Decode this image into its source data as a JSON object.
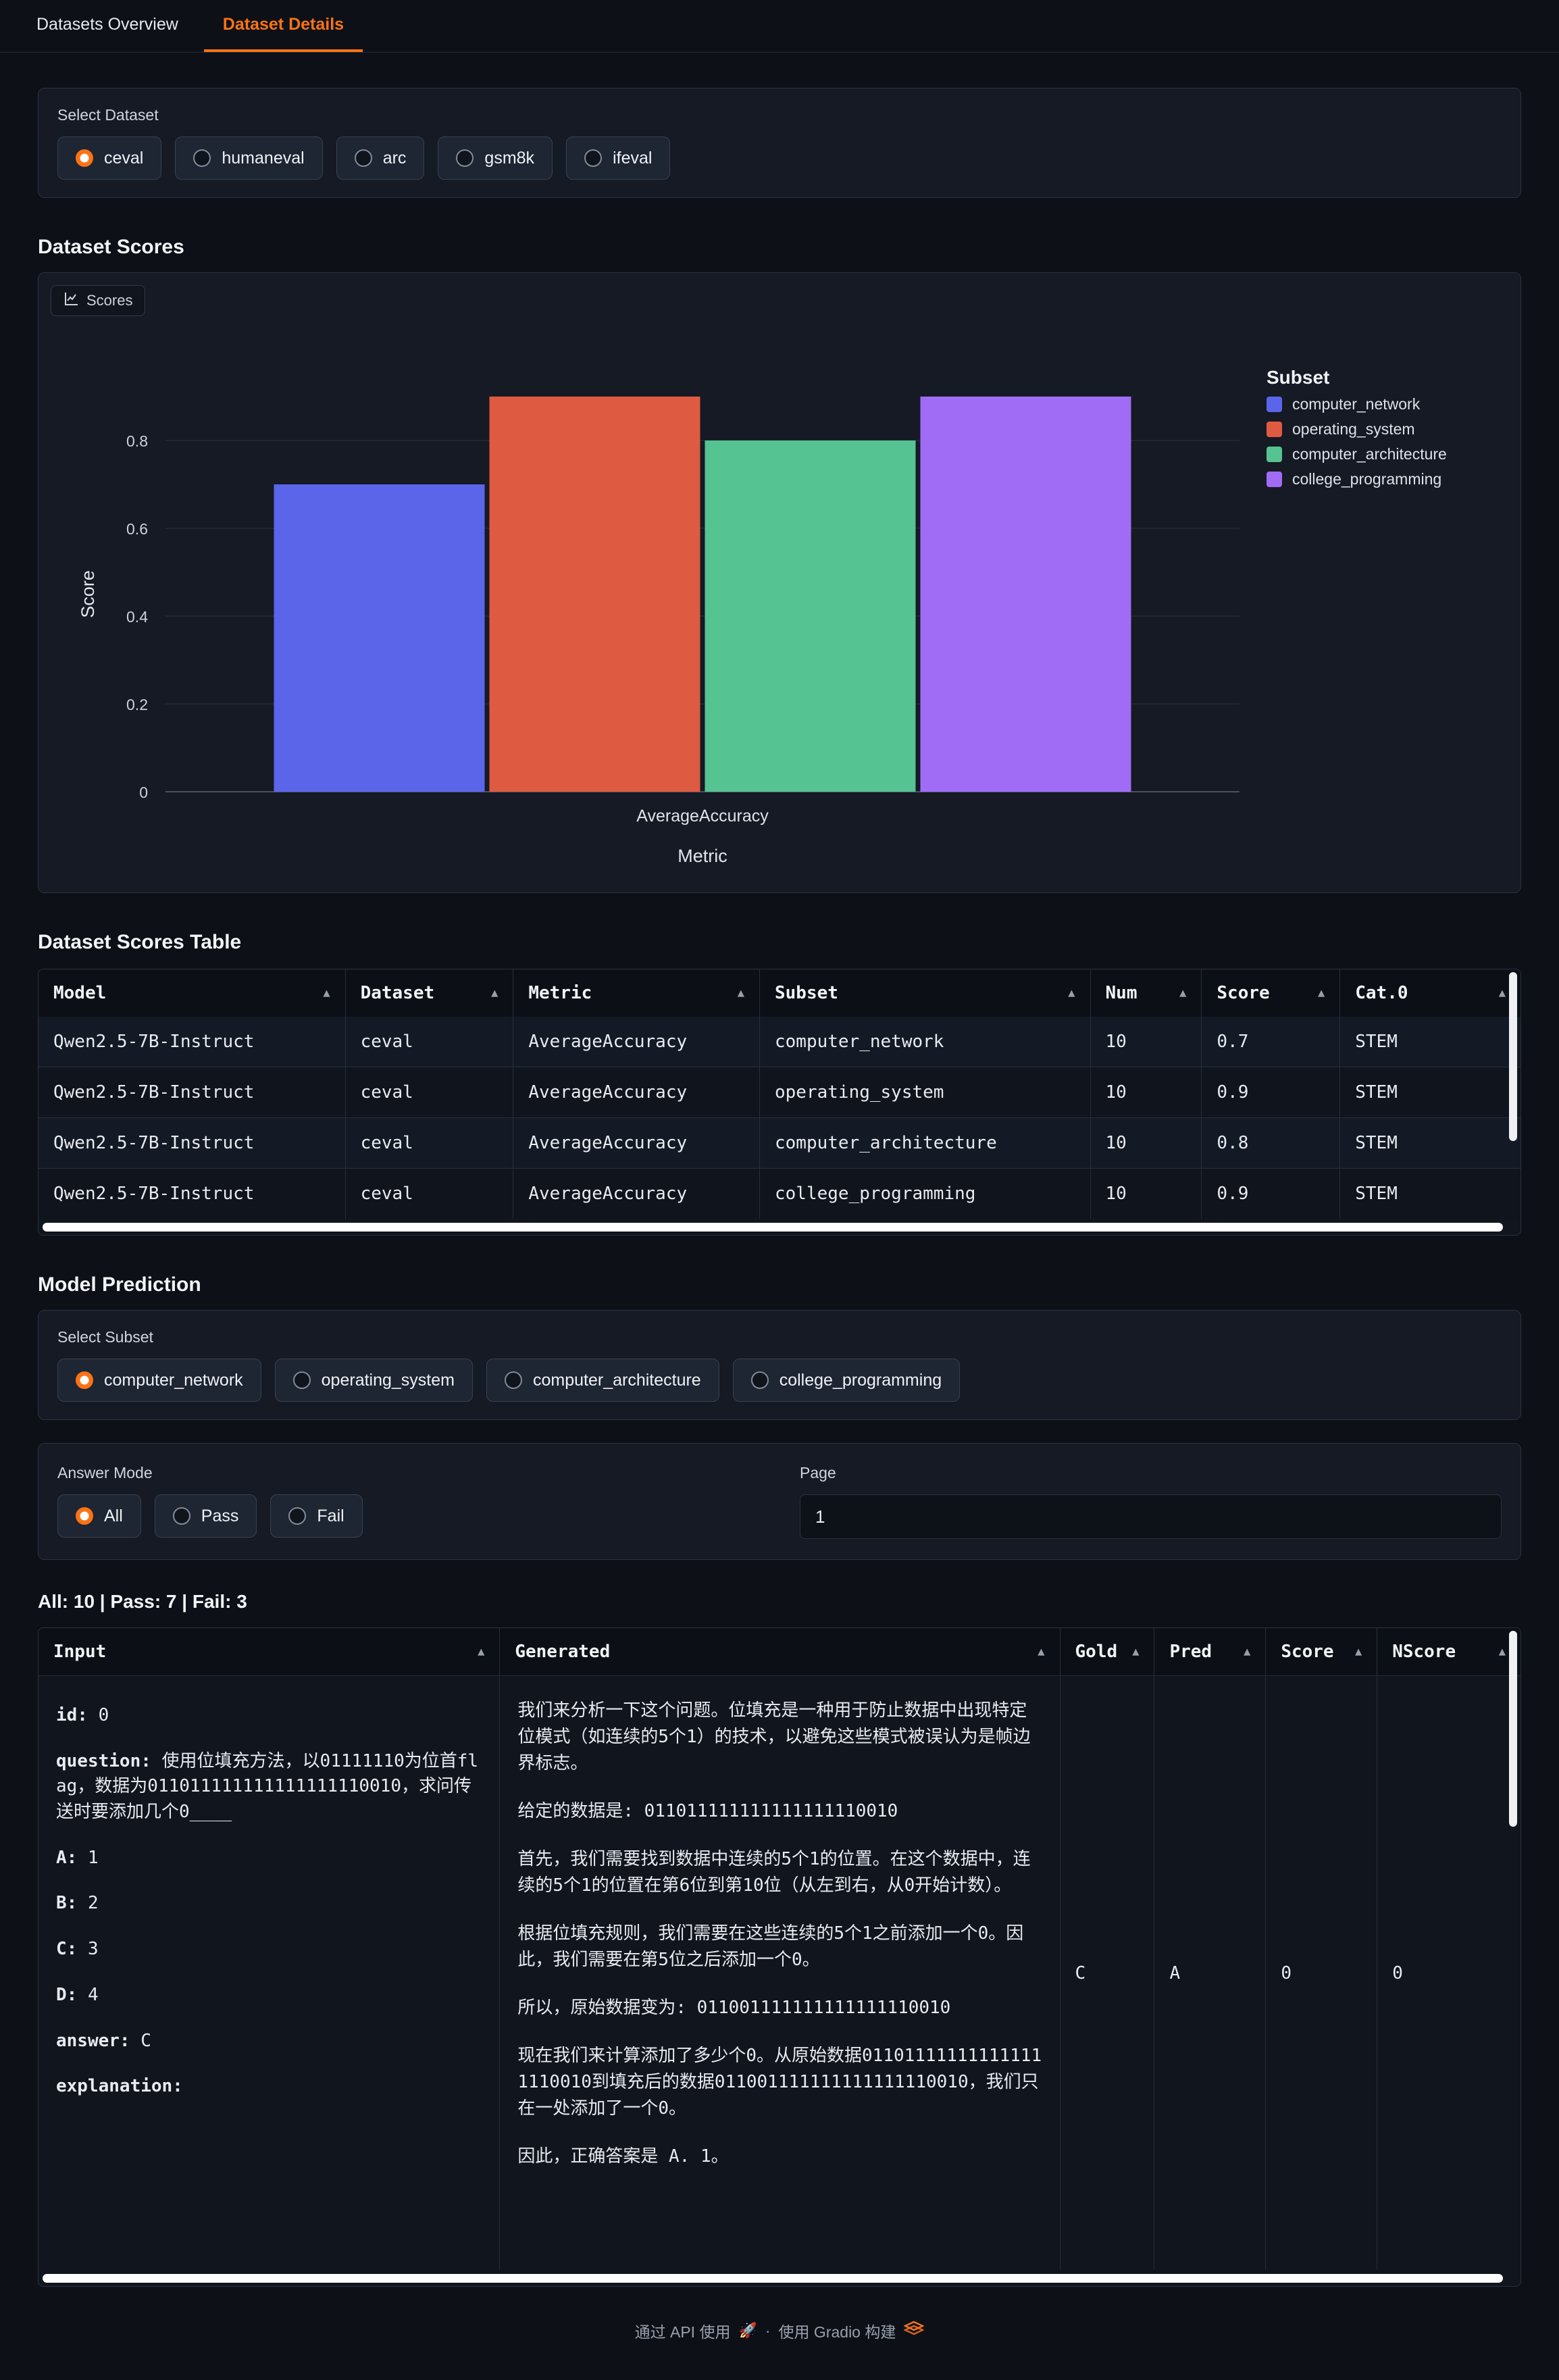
{
  "tabs": [
    {
      "label": "Datasets Overview"
    },
    {
      "label": "Dataset Details"
    }
  ],
  "active_tab": "Dataset Details",
  "select_dataset": {
    "label": "Select Dataset",
    "options": [
      "ceval",
      "humaneval",
      "arc",
      "gsm8k",
      "ifeval"
    ],
    "selected": "ceval"
  },
  "headings": {
    "dataset_scores": "Dataset Scores",
    "dataset_scores_table": "Dataset Scores Table",
    "model_prediction": "Model Prediction",
    "prediction_summary": "All: 10 | Pass: 7 | Fail: 3"
  },
  "chart_toolbar": {
    "label": "Scores"
  },
  "chart_data": {
    "type": "bar",
    "title": "",
    "categories": [
      "AverageAccuracy"
    ],
    "series": [
      {
        "name": "computer_network",
        "color": "#5B65E9",
        "values": [
          0.7
        ]
      },
      {
        "name": "operating_system",
        "color": "#DE5B41",
        "values": [
          0.9
        ]
      },
      {
        "name": "computer_architecture",
        "color": "#55C392",
        "values": [
          0.8
        ]
      },
      {
        "name": "college_programming",
        "color": "#A06CF5",
        "values": [
          0.9
        ]
      }
    ],
    "xlabel": "Metric",
    "ylabel": "Score",
    "ylim": [
      0,
      0.95
    ],
    "yticks": [
      0,
      0.2,
      0.4,
      0.6,
      0.8
    ],
    "grid": true,
    "legend_title": "Subset",
    "legend_position": "right"
  },
  "scores_table": {
    "columns": [
      "Model",
      "Dataset",
      "Metric",
      "Subset",
      "Num",
      "Score",
      "Cat.0"
    ],
    "rows": [
      [
        "Qwen2.5-7B-Instruct",
        "ceval",
        "AverageAccuracy",
        "computer_network",
        "10",
        "0.7",
        "STEM"
      ],
      [
        "Qwen2.5-7B-Instruct",
        "ceval",
        "AverageAccuracy",
        "operating_system",
        "10",
        "0.9",
        "STEM"
      ],
      [
        "Qwen2.5-7B-Instruct",
        "ceval",
        "AverageAccuracy",
        "computer_architecture",
        "10",
        "0.8",
        "STEM"
      ],
      [
        "Qwen2.5-7B-Instruct",
        "ceval",
        "AverageAccuracy",
        "college_programming",
        "10",
        "0.9",
        "STEM"
      ]
    ]
  },
  "select_subset": {
    "label": "Select Subset",
    "options": [
      "computer_network",
      "operating_system",
      "computer_architecture",
      "college_programming"
    ],
    "selected": "computer_network"
  },
  "answer_mode": {
    "label": "Answer Mode",
    "options": [
      "All",
      "Pass",
      "Fail"
    ],
    "selected": "All"
  },
  "page": {
    "label": "Page",
    "value": "1"
  },
  "prediction_table": {
    "columns": [
      "Input",
      "Generated",
      "Gold",
      "Pred",
      "Score",
      "NScore"
    ],
    "row": {
      "input_lines": [
        {
          "key": "id:",
          "text": " 0"
        },
        {
          "key": "question:",
          "text": " 使用位填充方法，以01111110为位首flag，数据为011011111111111111110010，求问传送时要添加几个0____"
        },
        {
          "key": "A:",
          "text": " 1"
        },
        {
          "key": "B:",
          "text": " 2"
        },
        {
          "key": "C:",
          "text": " 3"
        },
        {
          "key": "D:",
          "text": " 4"
        },
        {
          "key": "answer:",
          "text": " C"
        },
        {
          "key": "explanation:",
          "text": ""
        }
      ],
      "generated_paragraphs": [
        "我们来分析一下这个问题。位填充是一种用于防止数据中出现特定位模式（如连续的5个1）的技术，以避免这些模式被误认为是帧边界标志。",
        "给定的数据是: 011011111111111111110010",
        "首先，我们需要找到数据中连续的5个1的位置。在这个数据中，连续的5个1的位置在第6位到第10位（从左到右，从0开始计数）。",
        "根据位填充规则，我们需要在这些连续的5个1之前添加一个0。因此，我们需要在第5位之后添加一个0。",
        "所以，原始数据变为: 011001111111111111110010",
        "现在我们来计算添加了多少个0。从原始数据011011111111111111110010到填充后的数据011001111111111111110010，我们只在一处添加了一个0。",
        "因此，正确答案是 A. 1。"
      ],
      "gold": "C",
      "pred": "A",
      "score": "0",
      "nscore": "0"
    }
  },
  "icons": {
    "sort_arrow": "▲",
    "rocket": "🚀"
  },
  "footer": {
    "api_text": "通过 API 使用",
    "separator": "·",
    "built_text": "使用 Gradio 构建"
  },
  "colors": {
    "accent": "#F97316"
  }
}
